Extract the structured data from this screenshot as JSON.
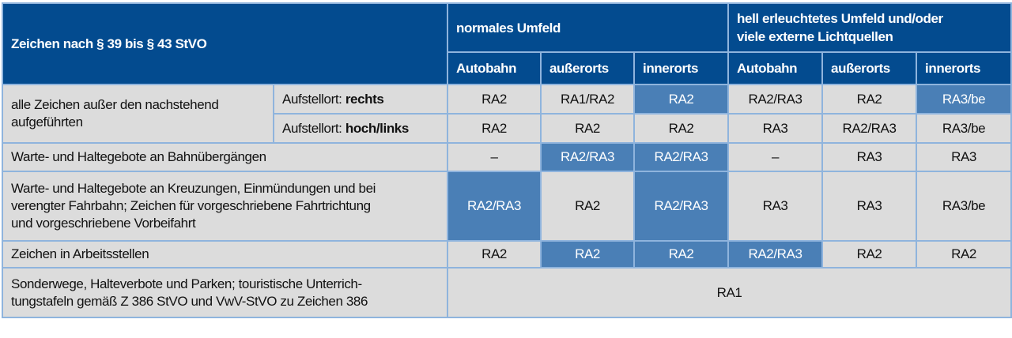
{
  "colors": {
    "header": "#034b8f",
    "cell": "#dcdcdc",
    "highlight": "#4a7fb6",
    "border": "#8fb4dd"
  },
  "header": {
    "title": "Zeichen nach § 39 bis § 43 StVO",
    "groups": [
      "normales Umfeld",
      "hell erleuchtetes Umfeld und/oder\nviele externe Lichtquellen"
    ],
    "columns": [
      "Autobahn",
      "außerorts",
      "innerorts",
      "Autobahn",
      "außerorts",
      "innerorts"
    ]
  },
  "rows": [
    {
      "label": "alle Zeichen außer den nachstehend\naufgeführten",
      "sub": [
        {
          "prefix": "Aufstellort: ",
          "bold": "rechts",
          "cells": [
            {
              "v": "RA2"
            },
            {
              "v": "RA1/RA2"
            },
            {
              "v": "RA2",
              "hl": true
            },
            {
              "v": "RA2/RA3"
            },
            {
              "v": "RA2"
            },
            {
              "v": "RA3/be",
              "hl": true
            }
          ]
        },
        {
          "prefix": "Aufstellort: ",
          "bold": "hoch/links",
          "cells": [
            {
              "v": "RA2"
            },
            {
              "v": "RA2"
            },
            {
              "v": "RA2"
            },
            {
              "v": "RA3"
            },
            {
              "v": "RA2/RA3"
            },
            {
              "v": "RA3/be"
            }
          ]
        }
      ]
    },
    {
      "label": "Warte- und Haltegebote an Bahnübergängen",
      "cells": [
        {
          "v": "–"
        },
        {
          "v": "RA2/RA3",
          "hl": true
        },
        {
          "v": "RA2/RA3",
          "hl": true
        },
        {
          "v": "–"
        },
        {
          "v": "RA3"
        },
        {
          "v": "RA3"
        }
      ]
    },
    {
      "label": "Warte- und Haltegebote an Kreuzungen, Einmündungen und bei\nverengter Fahrbahn; Zeichen für vorgeschriebene Fahrtrichtung\nund vorgeschriebene Vorbeifahrt",
      "cells": [
        {
          "v": "RA2/RA3",
          "hl": true
        },
        {
          "v": "RA2"
        },
        {
          "v": "RA2/RA3",
          "hl": true
        },
        {
          "v": "RA3"
        },
        {
          "v": "RA3"
        },
        {
          "v": "RA3/be"
        }
      ]
    },
    {
      "label": "Zeichen in Arbeitsstellen",
      "cells": [
        {
          "v": "RA2"
        },
        {
          "v": "RA2",
          "hl": true
        },
        {
          "v": "RA2",
          "hl": true
        },
        {
          "v": "RA2/RA3",
          "hl": true
        },
        {
          "v": "RA2"
        },
        {
          "v": "RA2"
        }
      ]
    },
    {
      "label": "Sonderwege, Halteverbote und Parken; touristische Unterrich-\ntungstafeln gemäß Z 386 StVO und VwV-StVO zu Zeichen 386",
      "span": "RA1"
    }
  ]
}
